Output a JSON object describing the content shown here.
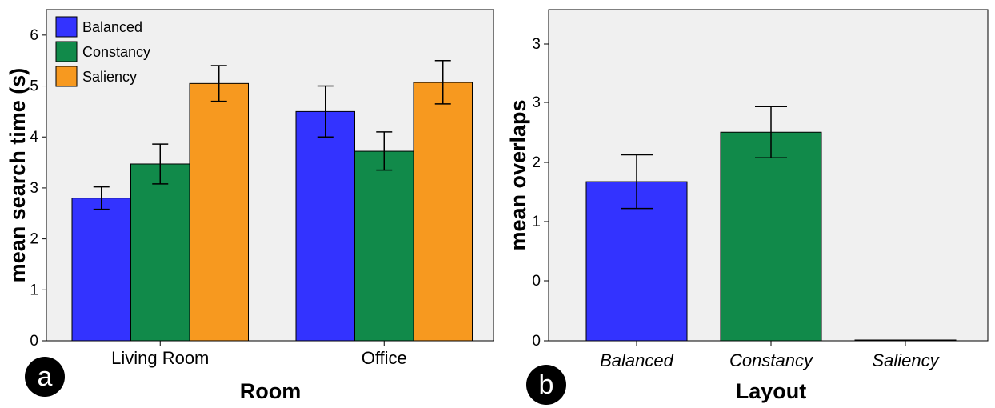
{
  "colors": {
    "balanced": "#3333ff",
    "constancy": "#118a4a",
    "saliency": "#f7991f",
    "plot_bg": "#f0f0f0"
  },
  "chart_data": [
    {
      "type": "bar",
      "panel_label": "a",
      "categories": [
        "Living Room",
        "Office"
      ],
      "series": [
        {
          "name": "Balanced",
          "values": [
            2.8,
            4.5
          ],
          "error_low": [
            2.58,
            4.0
          ],
          "error_high": [
            3.02,
            5.0
          ]
        },
        {
          "name": "Constancy",
          "values": [
            3.47,
            3.72
          ],
          "error_low": [
            3.08,
            3.35
          ],
          "error_high": [
            3.86,
            4.1
          ]
        },
        {
          "name": "Saliency",
          "values": [
            5.05,
            5.07
          ],
          "error_low": [
            4.7,
            4.65
          ],
          "error_high": [
            5.4,
            5.5
          ]
        }
      ],
      "xlabel": "Room",
      "ylabel": "mean search time (s)",
      "ylim": [
        0,
        6.5
      ],
      "yticks": [
        "0",
        "1",
        "2",
        "3",
        "4",
        "5",
        "6"
      ],
      "legend": {
        "placement": "top-left",
        "entries": [
          "Balanced",
          "Constancy",
          "Saliency"
        ]
      },
      "grid": false
    },
    {
      "type": "bar",
      "panel_label": "b",
      "categories": [
        "Balanced",
        "Constancy",
        "Saliency"
      ],
      "series": [
        {
          "values": [
            1.67,
            2.5,
            0.0
          ],
          "error_low": [
            1.22,
            2.07,
            0.0
          ],
          "error_high": [
            2.12,
            2.93,
            0.0
          ]
        }
      ],
      "xlabel": "Layout",
      "ylabel": "mean overlaps",
      "ylim": [
        0,
        3.55
      ],
      "yticks": [
        "0",
        "0",
        "1",
        "2",
        "3"
      ],
      "grid": false
    }
  ]
}
